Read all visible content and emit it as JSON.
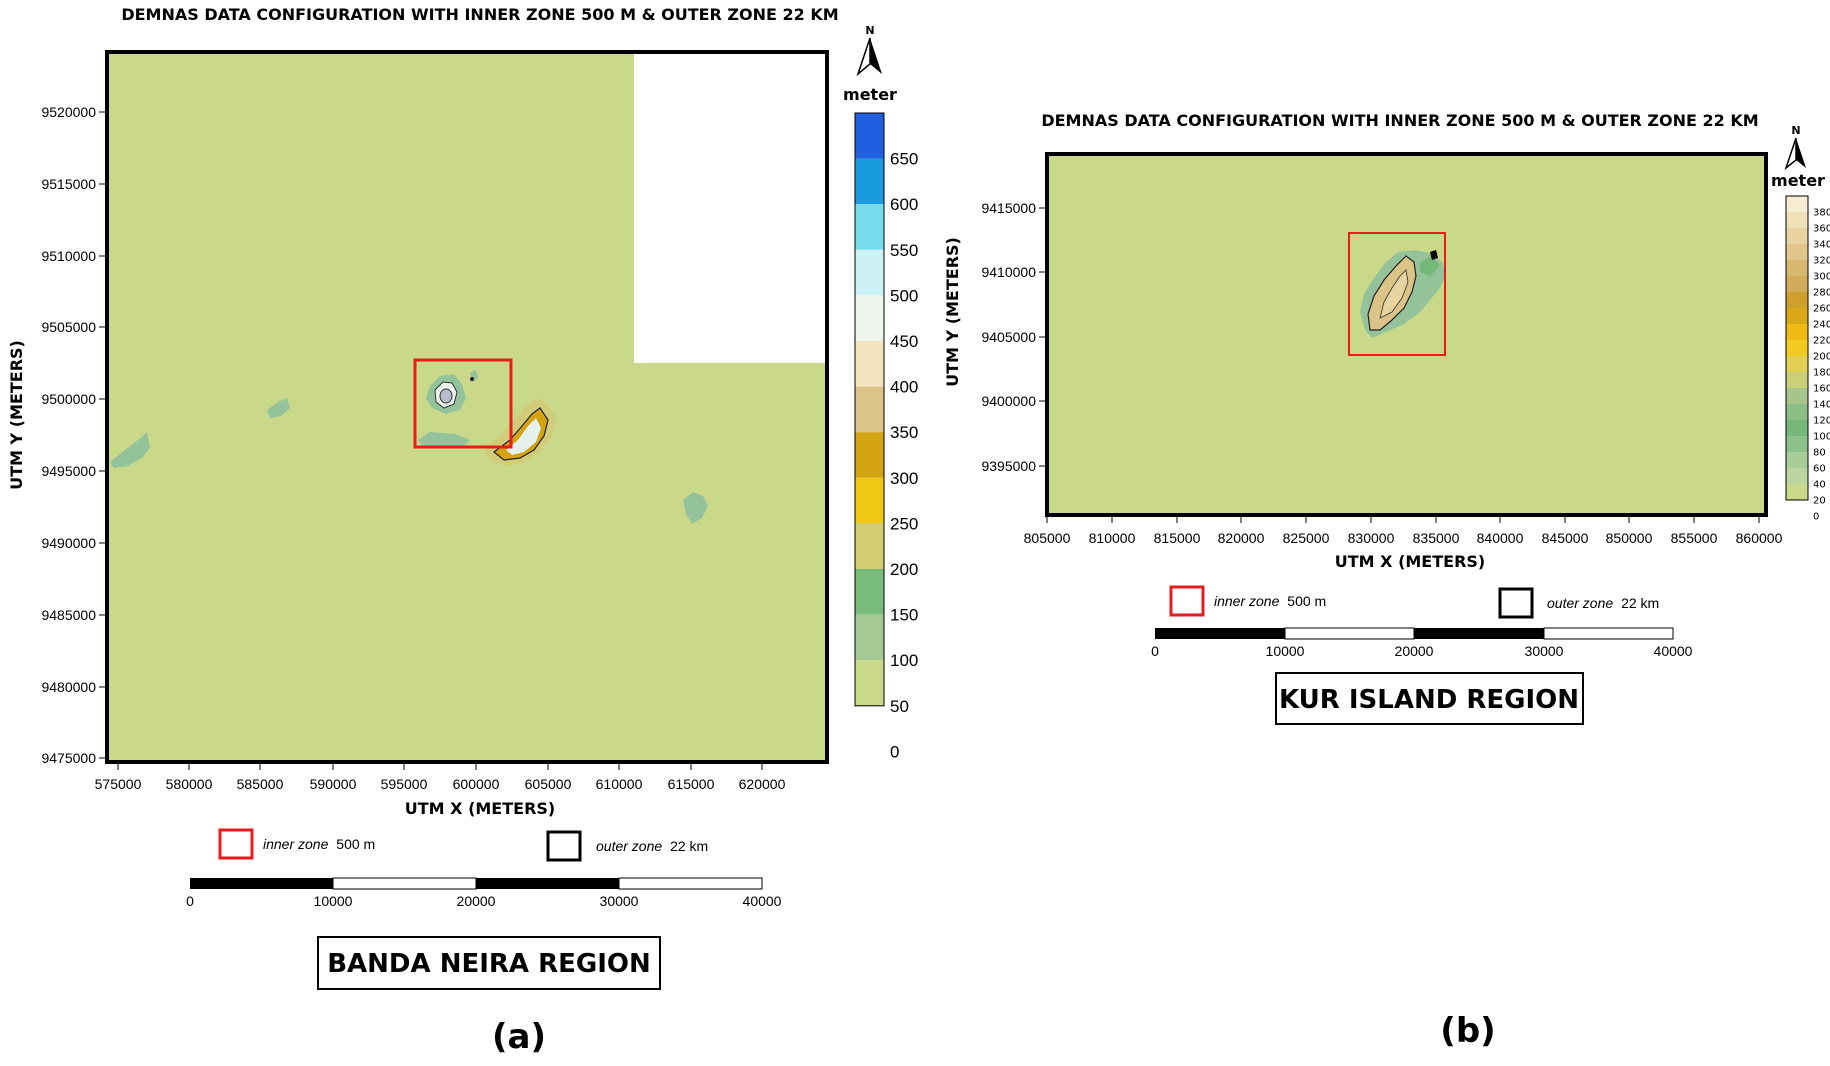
{
  "panels": [
    {
      "id": "a",
      "title": "DEMNAS DATA CONFIGURATION WITH INNER ZONE 500 M & OUTER ZONE 22 KM",
      "xlabel": "UTM X (METERS)",
      "ylabel": "UTM Y (METERS)",
      "x_ticks": [
        "575000",
        "580000",
        "585000",
        "590000",
        "595000",
        "600000",
        "605000",
        "610000",
        "615000",
        "620000"
      ],
      "y_ticks": [
        "9520000",
        "9515000",
        "9510000",
        "9505000",
        "9500000",
        "9495000",
        "9490000",
        "9485000",
        "9480000",
        "9475000"
      ],
      "north_label": "N",
      "colorbar": {
        "unit": "meter",
        "labels": [
          "650",
          "600",
          "550",
          "500",
          "450",
          "400",
          "350",
          "300",
          "250",
          "200",
          "150",
          "100",
          "50",
          "0"
        ],
        "colors": [
          "#1f5fe0",
          "#1a9be0",
          "#78dcef",
          "#cdf2f5",
          "#eef5ec",
          "#f4e4bd",
          "#dcc488",
          "#d3a311",
          "#f0c813",
          "#d2cc72",
          "#78bb7b",
          "#a5c995",
          "#c9d889"
        ]
      },
      "legend": {
        "inner_label": "inner zone",
        "inner_value": "500 m",
        "outer_label": "outer zone",
        "outer_value": "22 km",
        "inner_color": "#e81c1c",
        "outer_color": "#000000"
      },
      "scalebar": [
        "0",
        "10000",
        "20000",
        "30000",
        "40000"
      ],
      "region_label": "BANDA NEIRA REGION",
      "caption": "(a)"
    },
    {
      "id": "b",
      "title": "DEMNAS DATA CONFIGURATION WITH INNER ZONE 500 M & OUTER ZONE 22 KM",
      "xlabel": "UTM X (METERS)",
      "ylabel": "UTM Y (METERS)",
      "x_ticks": [
        "805000",
        "810000",
        "815000",
        "820000",
        "825000",
        "830000",
        "835000",
        "840000",
        "845000",
        "850000",
        "855000",
        "860000"
      ],
      "y_ticks": [
        "9415000",
        "9410000",
        "9405000",
        "9400000",
        "9395000"
      ],
      "north_label": "N",
      "colorbar": {
        "unit": "meter",
        "labels": [
          "380",
          "360",
          "340",
          "320",
          "300",
          "280",
          "260",
          "240",
          "220",
          "200",
          "180",
          "160",
          "140",
          "120",
          "100",
          "80",
          "60",
          "40",
          "20",
          "0"
        ],
        "colors": [
          "#f6ecd2",
          "#f0e0b8",
          "#e9d3a0",
          "#e0c68b",
          "#d8b86f",
          "#d2ac58",
          "#cf9f2c",
          "#d8a915",
          "#eebb14",
          "#f1cb1f",
          "#e3d052",
          "#cbcf76",
          "#a6c58c",
          "#8bbf86",
          "#74b778",
          "#8cc28a",
          "#a8cd98",
          "#bcd5a0",
          "#c9d889"
        ]
      },
      "legend": {
        "inner_label": "inner zone",
        "inner_value": "500 m",
        "outer_label": "outer zone",
        "outer_value": "22 km",
        "inner_color": "#e81c1c",
        "outer_color": "#000000"
      },
      "scalebar": [
        "0",
        "10000",
        "20000",
        "30000",
        "40000"
      ],
      "region_label": "KUR ISLAND REGION",
      "caption": "(b)"
    }
  ],
  "colors": {
    "land_background": "#c9d889",
    "frame": "#000000",
    "inner_zone": "#e81c1c"
  }
}
